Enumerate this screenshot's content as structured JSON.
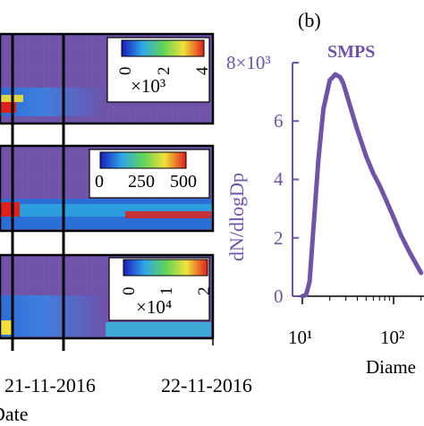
{
  "colors": {
    "background_purple": "#7052a8",
    "heat_blue": "#2a6fd6",
    "heat_cyan": "#2ec4e6",
    "heat_green": "#5fd35a",
    "heat_yellow": "#f0e23a",
    "heat_red": "#e0201c",
    "smps_curve": "#7052a8"
  },
  "chart_data": [
    {
      "type": "heatmap",
      "panel": "top",
      "colorbar": {
        "ticks": [
          "0",
          "2",
          "4"
        ],
        "multiplier": "×10³",
        "min": 0,
        "max": 4000
      }
    },
    {
      "type": "heatmap",
      "panel": "middle",
      "colorbar": {
        "ticks": [
          "0",
          "250",
          "500"
        ],
        "min": 0,
        "max": 500
      }
    },
    {
      "type": "heatmap",
      "panel": "bottom",
      "colorbar": {
        "ticks": [
          "0",
          "1",
          "2"
        ],
        "multiplier": "×10⁴",
        "min": 0,
        "max": 20000
      },
      "x_tick_labels": [
        "21-11-2016",
        "22-11-2016"
      ],
      "xlabel": "Date"
    },
    {
      "type": "line",
      "panel": "b",
      "panel_label": "(b)",
      "series": [
        {
          "name": "SMPS",
          "x": [
            10,
            11,
            12,
            13,
            15,
            17,
            20,
            23,
            26,
            28,
            30,
            35,
            40,
            50,
            60,
            70,
            80,
            100,
            120,
            150,
            200
          ],
          "y": [
            0,
            50,
            500,
            2000,
            4700,
            6400,
            7400,
            7600,
            7500,
            7300,
            7000,
            6300,
            5700,
            4800,
            4200,
            3800,
            3400,
            2700,
            2100,
            1500,
            800
          ]
        }
      ],
      "ylabel": "dN/dlogDp",
      "y_tick_labels": [
        "0",
        "2",
        "4",
        "6",
        "8×10³"
      ],
      "ylim": [
        0,
        8000
      ],
      "x_scale": "log",
      "x_tick_labels": [
        "10¹",
        "10²"
      ],
      "xlabel": "Diame",
      "xlim": [
        8,
        200
      ]
    }
  ]
}
